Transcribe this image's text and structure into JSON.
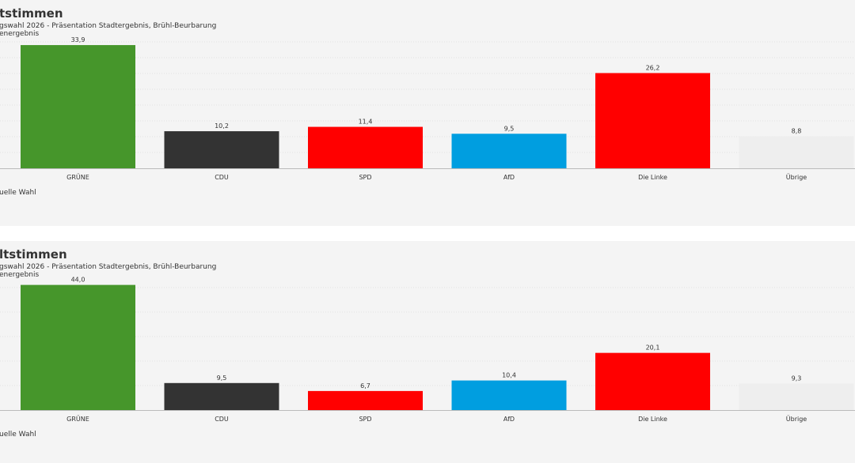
{
  "colors": {
    "gruene": "#46962b",
    "cdu": "#333333",
    "spd": "#ff0000",
    "afd": "#009ee0",
    "linke": "#ff0000",
    "uebrige": "#eeeeee"
  },
  "panels": [
    {
      "title": "tstimmen",
      "subtitle": "gswahl 2026 - Präsentation Stadtergebnis, Brühl-Beurbarung",
      "subtitle2": "energebnis",
      "legend": "uelle Wahl"
    },
    {
      "title": "ltstimmen",
      "subtitle": "gswahl 2026 - Präsentation Stadtergebnis, Brühl-Beurbarung",
      "subtitle2": "energebnis",
      "legend": "uelle Wahl"
    }
  ],
  "chart_data": [
    {
      "type": "bar",
      "categories": [
        "GRÜNE",
        "CDU",
        "SPD",
        "AfD",
        "Die Linke",
        "Übrige"
      ],
      "values": [
        33.9,
        10.2,
        11.4,
        9.5,
        26.2,
        8.8
      ],
      "value_labels": [
        "33,9",
        "10,2",
        "11,4",
        "9,5",
        "26,2",
        "8,8"
      ],
      "bar_colors": [
        "#46962b",
        "#333333",
        "#ff0000",
        "#009ee0",
        "#ff0000",
        "#eeeeee"
      ],
      "ylim": [
        0,
        35
      ],
      "grid": true
    },
    {
      "type": "bar",
      "categories": [
        "GRÜNE",
        "CDU",
        "SPD",
        "AfD",
        "Die Linke",
        "Übrige"
      ],
      "values": [
        44.0,
        9.5,
        6.7,
        10.4,
        20.1,
        9.3
      ],
      "value_labels": [
        "44,0",
        "9,5",
        "6,7",
        "10,4",
        "20,1",
        "9,3"
      ],
      "bar_colors": [
        "#46962b",
        "#333333",
        "#ff0000",
        "#009ee0",
        "#ff0000",
        "#eeeeee"
      ],
      "ylim": [
        0,
        45
      ],
      "grid": true
    }
  ]
}
